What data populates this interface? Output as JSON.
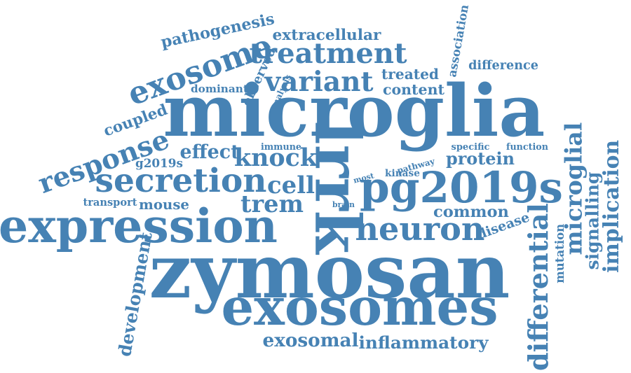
{
  "theme": {
    "word_color": "#4682b4",
    "background": "#ffffff"
  },
  "words": [
    {
      "text": "zymosan",
      "rotation": 0
    },
    {
      "text": "microglia",
      "rotation": 0
    },
    {
      "text": "exosomes",
      "rotation": 0
    },
    {
      "text": "expression",
      "rotation": 0
    },
    {
      "text": "pg2019s",
      "rotation": 0
    },
    {
      "text": "lrrk",
      "rotation": 90
    },
    {
      "text": "secretion",
      "rotation": 0
    },
    {
      "text": "neuron",
      "rotation": 0
    },
    {
      "text": "treatment",
      "rotation": 0
    },
    {
      "text": "variant",
      "rotation": 0
    },
    {
      "text": "exosome",
      "rotation": -20
    },
    {
      "text": "response",
      "rotation": -20
    },
    {
      "text": "knock",
      "rotation": 0
    },
    {
      "text": "cell",
      "rotation": 0
    },
    {
      "text": "trem",
      "rotation": 0
    },
    {
      "text": "differential",
      "rotation": -90
    },
    {
      "text": "microglial",
      "rotation": -90
    },
    {
      "text": "implication",
      "rotation": -90
    },
    {
      "text": "signalling",
      "rotation": -90
    },
    {
      "text": "exosomal",
      "rotation": 0
    },
    {
      "text": "inflammatory",
      "rotation": 0
    },
    {
      "text": "pathogenesis",
      "rotation": -12
    },
    {
      "text": "extracellular",
      "rotation": 0
    },
    {
      "text": "effect",
      "rotation": 0
    },
    {
      "text": "protein",
      "rotation": 0
    },
    {
      "text": "common",
      "rotation": 0
    },
    {
      "text": "mouse",
      "rotation": 0
    },
    {
      "text": "coupled",
      "rotation": -20
    },
    {
      "text": "disease",
      "rotation": -20
    },
    {
      "text": "development",
      "rotation": -80
    },
    {
      "text": "association",
      "rotation": -80
    },
    {
      "text": "difference",
      "rotation": 0
    },
    {
      "text": "treated",
      "rotation": 0
    },
    {
      "text": "content",
      "rotation": 0
    },
    {
      "text": "dominant",
      "rotation": 0
    },
    {
      "text": "observed",
      "rotation": -65
    },
    {
      "text": "analysis",
      "rotation": -65
    },
    {
      "text": "g2019s",
      "rotation": 0
    },
    {
      "text": "immune",
      "rotation": 0
    },
    {
      "text": "specific",
      "rotation": 0
    },
    {
      "text": "function",
      "rotation": 0
    },
    {
      "text": "pathway",
      "rotation": -15
    },
    {
      "text": "kinase",
      "rotation": 0
    },
    {
      "text": "most",
      "rotation": -15
    },
    {
      "text": "transport",
      "rotation": 0
    },
    {
      "text": "brain",
      "rotation": 0
    },
    {
      "text": "mutation",
      "rotation": -90
    }
  ]
}
